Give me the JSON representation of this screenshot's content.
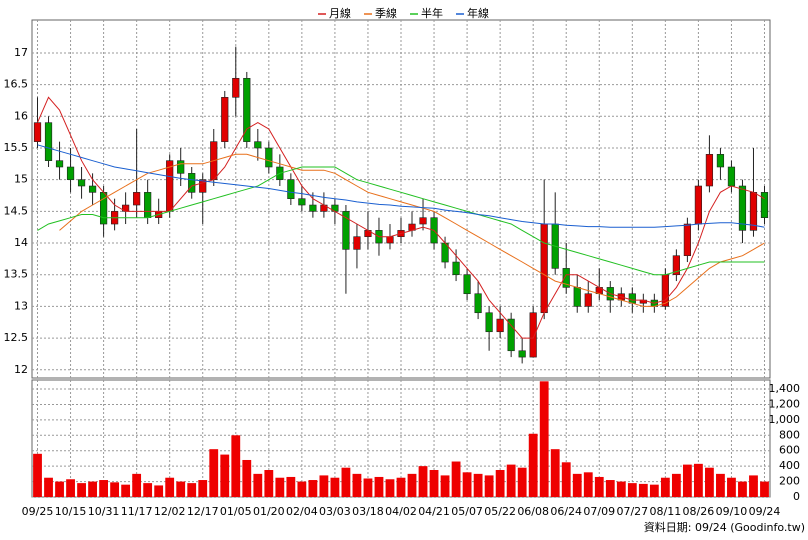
{
  "chart_data": {
    "type": "candlestick",
    "source_note": "資料日期: 09/24  (Goodinfo.tw)",
    "legend": "top",
    "grid": true,
    "up_color": "#e00000",
    "down_color": "#00a000",
    "categories": [
      "09/25",
      null,
      null,
      "10/15",
      null,
      null,
      "10/31",
      null,
      null,
      "11/17",
      null,
      null,
      "12/02",
      null,
      null,
      "12/17",
      null,
      null,
      "01/05",
      null,
      null,
      "01/20",
      null,
      null,
      "02/04",
      null,
      null,
      "03/03",
      null,
      null,
      "03/18",
      null,
      null,
      "04/02",
      null,
      null,
      "04/21",
      null,
      null,
      "05/07",
      null,
      null,
      "05/22",
      null,
      null,
      "06/08",
      null,
      null,
      "06/24",
      null,
      null,
      "07/09",
      null,
      null,
      "07/27",
      null,
      null,
      "08/11",
      null,
      null,
      "08/26",
      null,
      null,
      "09/10",
      null,
      null,
      "09/24"
    ],
    "ohlc": [
      [
        15.6,
        16.3,
        15.5,
        15.9
      ],
      [
        15.9,
        16.0,
        15.2,
        15.3
      ],
      [
        15.3,
        15.6,
        15.0,
        15.2
      ],
      [
        15.2,
        15.5,
        14.8,
        15.0
      ],
      [
        15.0,
        15.2,
        14.7,
        14.9
      ],
      [
        14.9,
        15.1,
        14.6,
        14.8
      ],
      [
        14.8,
        14.9,
        14.1,
        14.3
      ],
      [
        14.3,
        14.7,
        14.2,
        14.5
      ],
      [
        14.5,
        14.8,
        14.3,
        14.6
      ],
      [
        14.6,
        15.8,
        14.4,
        14.8
      ],
      [
        14.8,
        15.0,
        14.3,
        14.4
      ],
      [
        14.4,
        14.7,
        14.3,
        14.5
      ],
      [
        14.5,
        15.4,
        14.4,
        15.3
      ],
      [
        15.3,
        15.5,
        14.9,
        15.1
      ],
      [
        15.1,
        15.2,
        14.7,
        14.8
      ],
      [
        14.8,
        15.1,
        14.3,
        15.0
      ],
      [
        15.0,
        15.8,
        14.9,
        15.6
      ],
      [
        15.6,
        16.4,
        15.5,
        16.3
      ],
      [
        16.3,
        17.1,
        16.0,
        16.6
      ],
      [
        16.6,
        16.7,
        15.5,
        15.6
      ],
      [
        15.6,
        15.8,
        15.3,
        15.5
      ],
      [
        15.5,
        15.6,
        15.1,
        15.2
      ],
      [
        15.2,
        15.4,
        14.9,
        15.0
      ],
      [
        15.0,
        15.1,
        14.6,
        14.7
      ],
      [
        14.7,
        14.9,
        14.5,
        14.6
      ],
      [
        14.6,
        14.8,
        14.4,
        14.5
      ],
      [
        14.5,
        14.8,
        14.4,
        14.6
      ],
      [
        14.6,
        14.7,
        14.3,
        14.5
      ],
      [
        14.5,
        14.6,
        13.2,
        13.9
      ],
      [
        13.9,
        14.3,
        13.6,
        14.1
      ],
      [
        14.1,
        14.5,
        13.9,
        14.2
      ],
      [
        14.2,
        14.4,
        13.8,
        14.0
      ],
      [
        14.0,
        14.3,
        13.9,
        14.1
      ],
      [
        14.1,
        14.4,
        14.0,
        14.2
      ],
      [
        14.2,
        14.5,
        14.1,
        14.3
      ],
      [
        14.3,
        14.7,
        14.2,
        14.4
      ],
      [
        14.4,
        14.5,
        13.9,
        14.0
      ],
      [
        14.0,
        14.1,
        13.6,
        13.7
      ],
      [
        13.7,
        13.9,
        13.4,
        13.5
      ],
      [
        13.5,
        13.6,
        13.1,
        13.2
      ],
      [
        13.2,
        13.4,
        12.8,
        12.9
      ],
      [
        12.9,
        13.0,
        12.3,
        12.6
      ],
      [
        12.6,
        13.0,
        12.5,
        12.8
      ],
      [
        12.8,
        12.9,
        12.2,
        12.3
      ],
      [
        12.3,
        12.5,
        12.1,
        12.2
      ],
      [
        12.2,
        13.0,
        12.2,
        12.9
      ],
      [
        12.9,
        15.0,
        12.8,
        14.3
      ],
      [
        14.3,
        14.8,
        13.5,
        13.6
      ],
      [
        13.6,
        14.0,
        13.2,
        13.3
      ],
      [
        13.3,
        13.5,
        12.9,
        13.0
      ],
      [
        13.0,
        13.4,
        12.9,
        13.2
      ],
      [
        13.2,
        13.6,
        13.1,
        13.3
      ],
      [
        13.3,
        13.4,
        12.9,
        13.1
      ],
      [
        13.1,
        13.3,
        13.0,
        13.2
      ],
      [
        13.2,
        13.3,
        12.9,
        13.05
      ],
      [
        13.05,
        13.2,
        12.9,
        13.1
      ],
      [
        13.1,
        13.2,
        12.9,
        13.0
      ],
      [
        13.0,
        13.6,
        12.95,
        13.5
      ],
      [
        13.5,
        13.9,
        13.4,
        13.8
      ],
      [
        13.8,
        14.4,
        13.7,
        14.3
      ],
      [
        14.3,
        15.0,
        14.2,
        14.9
      ],
      [
        14.9,
        15.7,
        14.8,
        15.4
      ],
      [
        15.4,
        15.5,
        15.0,
        15.2
      ],
      [
        15.2,
        15.3,
        14.8,
        14.9
      ],
      [
        14.9,
        15.0,
        14.0,
        14.2
      ],
      [
        14.2,
        15.5,
        14.1,
        14.8
      ],
      [
        14.8,
        14.9,
        14.3,
        14.4
      ]
    ],
    "series": [
      {
        "name": "月線",
        "color": "#d42020",
        "values": [
          15.9,
          16.3,
          16.1,
          15.7,
          15.3,
          15.0,
          14.8,
          14.6,
          14.5,
          14.5,
          14.5,
          14.5,
          14.5,
          14.7,
          14.9,
          14.95,
          15.0,
          15.2,
          15.5,
          15.8,
          15.9,
          15.8,
          15.5,
          15.2,
          14.9,
          14.7,
          14.6,
          14.5,
          14.4,
          14.3,
          14.2,
          14.1,
          14.1,
          14.15,
          14.2,
          14.25,
          14.2,
          14.0,
          13.8,
          13.6,
          13.4,
          13.1,
          12.9,
          12.7,
          12.5,
          12.5,
          12.9,
          13.2,
          13.5,
          13.5,
          13.4,
          13.3,
          13.2,
          13.15,
          13.1,
          13.1,
          13.05,
          13.1,
          13.3,
          13.6,
          14.0,
          14.5,
          14.8,
          14.9,
          14.85,
          14.8,
          14.7
        ]
      },
      {
        "name": "季線",
        "color": "#e8701c",
        "values": [
          null,
          null,
          14.2,
          14.35,
          14.5,
          14.6,
          14.7,
          14.8,
          14.9,
          15.0,
          15.1,
          15.15,
          15.2,
          15.25,
          15.25,
          15.25,
          15.3,
          15.35,
          15.4,
          15.4,
          15.35,
          15.3,
          15.25,
          15.2,
          15.15,
          15.15,
          15.15,
          15.1,
          15.0,
          14.9,
          14.8,
          14.75,
          14.7,
          14.65,
          14.6,
          14.55,
          14.5,
          14.4,
          14.3,
          14.2,
          14.1,
          14.0,
          13.9,
          13.8,
          13.7,
          13.6,
          13.5,
          13.4,
          13.35,
          13.3,
          13.25,
          13.2,
          13.15,
          13.1,
          13.05,
          13.0,
          13.0,
          13.05,
          13.15,
          13.3,
          13.45,
          13.6,
          13.7,
          13.75,
          13.8,
          13.9,
          14.0
        ]
      },
      {
        "name": "半年",
        "color": "#22c022",
        "values": [
          14.2,
          14.3,
          14.35,
          14.4,
          14.45,
          14.45,
          14.4,
          14.4,
          14.4,
          14.4,
          14.4,
          14.45,
          14.5,
          14.55,
          14.6,
          14.65,
          14.7,
          14.75,
          14.8,
          14.85,
          14.9,
          15.0,
          15.1,
          15.15,
          15.2,
          15.2,
          15.2,
          15.2,
          15.1,
          15.0,
          14.95,
          14.9,
          14.85,
          14.8,
          14.75,
          14.7,
          14.65,
          14.6,
          14.55,
          14.5,
          14.45,
          14.4,
          14.35,
          14.3,
          14.2,
          14.1,
          14.0,
          13.95,
          13.9,
          13.85,
          13.8,
          13.75,
          13.7,
          13.65,
          13.6,
          13.55,
          13.5,
          13.5,
          13.55,
          13.6,
          13.65,
          13.7,
          13.7,
          13.7,
          13.7,
          13.7,
          13.7
        ]
      },
      {
        "name": "年線",
        "color": "#1a5fd0",
        "values": [
          15.55,
          15.5,
          15.45,
          15.4,
          15.35,
          15.3,
          15.25,
          15.2,
          15.17,
          15.14,
          15.11,
          15.08,
          15.05,
          15.02,
          15.0,
          14.98,
          14.96,
          14.94,
          14.92,
          14.9,
          14.88,
          14.86,
          14.83,
          14.8,
          14.78,
          14.75,
          14.72,
          14.7,
          14.68,
          14.65,
          14.63,
          14.61,
          14.6,
          14.58,
          14.57,
          14.56,
          14.55,
          14.52,
          14.5,
          14.48,
          14.45,
          14.43,
          14.4,
          14.37,
          14.34,
          14.32,
          14.3,
          14.3,
          14.28,
          14.27,
          14.26,
          14.26,
          14.25,
          14.25,
          14.25,
          14.25,
          14.25,
          14.26,
          14.27,
          14.28,
          14.3,
          14.31,
          14.32,
          14.32,
          14.3,
          14.28,
          14.25
        ]
      }
    ],
    "volume": {
      "color": "#ee0000",
      "values": [
        560,
        250,
        200,
        230,
        180,
        200,
        220,
        190,
        160,
        300,
        180,
        150,
        250,
        200,
        180,
        220,
        620,
        550,
        800,
        480,
        300,
        350,
        250,
        260,
        200,
        220,
        280,
        250,
        380,
        300,
        240,
        260,
        230,
        250,
        300,
        400,
        350,
        280,
        460,
        320,
        300,
        280,
        350,
        420,
        380,
        820,
        1500,
        620,
        450,
        300,
        320,
        260,
        220,
        200,
        180,
        170,
        160,
        250,
        300,
        420,
        430,
        380,
        300,
        250,
        200,
        280,
        200
      ]
    },
    "ylim": [
      11.87,
      17.52
    ],
    "yticks": [
      12,
      12.5,
      13,
      13.5,
      14,
      14.5,
      15,
      15.5,
      16,
      16.5,
      17
    ],
    "y2lim": [
      0,
      1517
    ],
    "y2ticks": [
      0,
      200,
      400,
      600,
      800,
      {
        "value": 1000,
        "label": "1,000"
      },
      {
        "value": 1200,
        "label": "1,200"
      },
      {
        "value": 1400,
        "label": "1,400"
      }
    ]
  }
}
